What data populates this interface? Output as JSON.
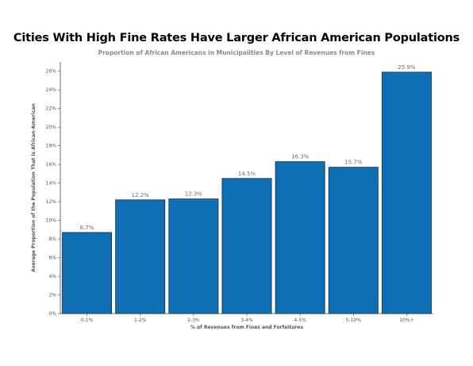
{
  "chart_data": {
    "type": "bar",
    "title": "Cities With High Fine Rates Have Larger African American Populations",
    "subtitle": "Proportion of African Americans in Municipalities By Level of Revenues from Fines",
    "xlabel": "% of Revenues from Fines and Forfeitures",
    "ylabel": "Average Proportion of the Population That is African-American",
    "categories": [
      "0-1%",
      "1-2%",
      "2-3%",
      "3-4%",
      "4-5%",
      "5-10%",
      "10%+"
    ],
    "values": [
      8.7,
      12.2,
      12.3,
      14.5,
      16.3,
      15.7,
      25.9
    ],
    "data_labels": [
      "8.7%",
      "12.2%",
      "12.3%",
      "14.5%",
      "16.3%",
      "15.7%",
      "25.9%"
    ],
    "ylim": [
      0,
      27
    ],
    "yticks": [
      0,
      2,
      4,
      6,
      8,
      10,
      12,
      14,
      16,
      18,
      20,
      22,
      24,
      26
    ],
    "ytick_labels": [
      "0%",
      "2%",
      "4%",
      "6%",
      "8%",
      "10%",
      "12%",
      "14%",
      "16%",
      "18%",
      "20%",
      "22%",
      "24%",
      "26%"
    ],
    "bar_color": "#0f6fb5",
    "bar_edge_color": "#0b2a45",
    "grid": false,
    "legend": "none"
  }
}
